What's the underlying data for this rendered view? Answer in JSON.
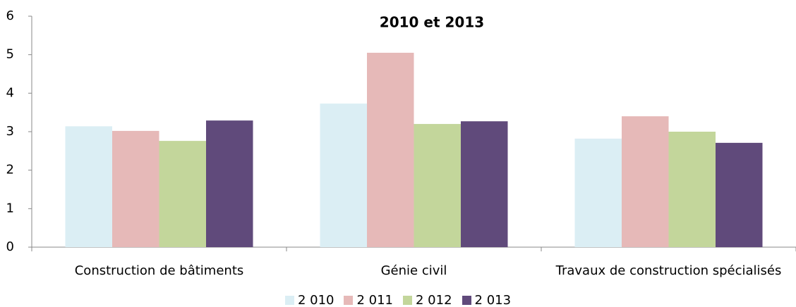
{
  "chart_data": {
    "type": "bar",
    "title": "2010 et 2013",
    "categories": [
      "Construction de bâtiments",
      "Génie civil",
      "Travaux de construction spécialisés"
    ],
    "series": [
      {
        "name": "2 010",
        "color": "#dbeef4",
        "values": [
          3.14,
          3.73,
          2.82
        ]
      },
      {
        "name": "2 011",
        "color": "#e6b9b8",
        "values": [
          3.02,
          5.05,
          3.4
        ]
      },
      {
        "name": "2 012",
        "color": "#c3d69b",
        "values": [
          2.76,
          3.2,
          3.0
        ]
      },
      {
        "name": "2 013",
        "color": "#604a7b",
        "values": [
          3.29,
          3.27,
          2.71
        ]
      }
    ],
    "ylim": [
      0,
      6
    ],
    "yticks": [
      0,
      1,
      2,
      3,
      4,
      5,
      6
    ],
    "legend": "bottom"
  }
}
